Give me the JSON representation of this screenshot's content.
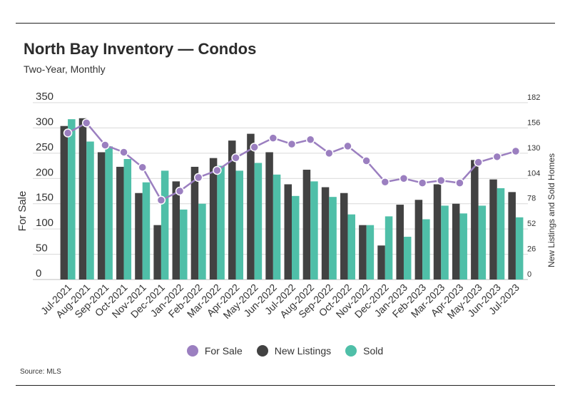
{
  "header": {
    "title": "North Bay Inventory — Condos",
    "subtitle": "Two-Year, Monthly"
  },
  "footer": {
    "source": "Source: MLS"
  },
  "colors": {
    "for_sale": "#9b7fc0",
    "new_listings": "#424242",
    "sold": "#4fbfa8",
    "grid": "#d9d9d9"
  },
  "chart_data": {
    "type": "bar",
    "categories": [
      "Jul-2021",
      "Aug-2021",
      "Sep-2021",
      "Oct-2021",
      "Nov-2021",
      "Dec-2021",
      "Jan-2022",
      "Feb-2022",
      "Mar-2022",
      "Apr-2022",
      "May-2022",
      "Jun-2022",
      "Jul-2022",
      "Aug-2022",
      "Sep-2022",
      "Oct-2022",
      "Nov-2022",
      "Dec-2022",
      "Jan-2023",
      "Feb-2023",
      "Mar-2023",
      "Apr-2023",
      "May-2023",
      "Jun-2023",
      "Jul-2023"
    ],
    "series": [
      {
        "name": "For Sale",
        "kind": "line",
        "axis": "left",
        "values": [
          290,
          310,
          266,
          252,
          222,
          157,
          175,
          202,
          216,
          241,
          262,
          280,
          268,
          277,
          250,
          264,
          235,
          193,
          200,
          191,
          196,
          191,
          232,
          243,
          254
        ]
      },
      {
        "name": "New Listings",
        "kind": "bar",
        "axis": "right",
        "values": [
          158,
          166,
          131,
          116,
          89,
          56,
          101,
          116,
          125,
          143,
          150,
          131,
          98,
          113,
          95,
          89,
          56,
          35,
          77,
          82,
          98,
          78,
          123,
          103,
          90
        ]
      },
      {
        "name": "Sold",
        "kind": "bar",
        "axis": "right",
        "values": [
          165,
          142,
          137,
          124,
          100,
          112,
          72,
          78,
          117,
          112,
          120,
          108,
          86,
          101,
          85,
          67,
          56,
          65,
          44,
          62,
          76,
          68,
          76,
          94,
          64
        ]
      }
    ],
    "y_left": {
      "label": "For Sale",
      "min": 0,
      "max": 350,
      "ticks": [
        0,
        50,
        100,
        150,
        200,
        250,
        300,
        350
      ]
    },
    "y_right": {
      "label": "New Listings and Sold Homes",
      "min": 0,
      "max": 182,
      "ticks": [
        0,
        26,
        52,
        78,
        104,
        130,
        156,
        182
      ]
    },
    "grid": true,
    "legend": "bottom-center"
  }
}
